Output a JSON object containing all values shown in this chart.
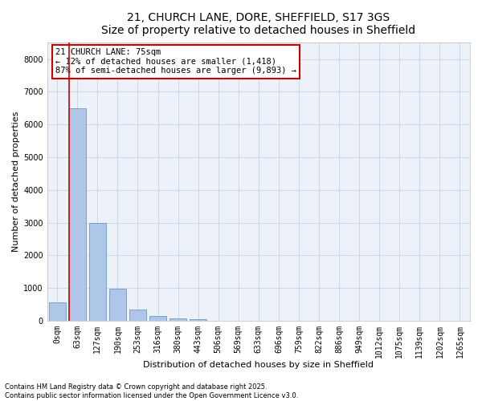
{
  "title_line1": "21, CHURCH LANE, DORE, SHEFFIELD, S17 3GS",
  "title_line2": "Size of property relative to detached houses in Sheffield",
  "xlabel": "Distribution of detached houses by size in Sheffield",
  "ylabel": "Number of detached properties",
  "bar_color": "#aec6e8",
  "bar_edge_color": "#5b8db8",
  "grid_color": "#c8d8ea",
  "background_color": "#edf2f8",
  "vline_color": "#cc0000",
  "annotation_text": "21 CHURCH LANE: 75sqm\n← 12% of detached houses are smaller (1,418)\n87% of semi-detached houses are larger (9,893) →",
  "annotation_box_facecolor": "#ffffff",
  "annotation_box_edgecolor": "#cc0000",
  "categories": [
    "0sqm",
    "63sqm",
    "127sqm",
    "190sqm",
    "253sqm",
    "316sqm",
    "380sqm",
    "443sqm",
    "506sqm",
    "569sqm",
    "633sqm",
    "696sqm",
    "759sqm",
    "822sqm",
    "886sqm",
    "949sqm",
    "1012sqm",
    "1075sqm",
    "1139sqm",
    "1202sqm",
    "1265sqm"
  ],
  "values": [
    550,
    6500,
    2980,
    980,
    340,
    150,
    80,
    40,
    0,
    0,
    0,
    0,
    0,
    0,
    0,
    0,
    0,
    0,
    0,
    0,
    0
  ],
  "ylim": [
    0,
    8500
  ],
  "yticks": [
    0,
    1000,
    2000,
    3000,
    4000,
    5000,
    6000,
    7000,
    8000
  ],
  "footnote": "Contains HM Land Registry data © Crown copyright and database right 2025.\nContains public sector information licensed under the Open Government Licence v3.0.",
  "title_fontsize": 10,
  "subtitle_fontsize": 9,
  "label_fontsize": 8,
  "tick_fontsize": 7,
  "annot_fontsize": 7.5,
  "footnote_fontsize": 6
}
